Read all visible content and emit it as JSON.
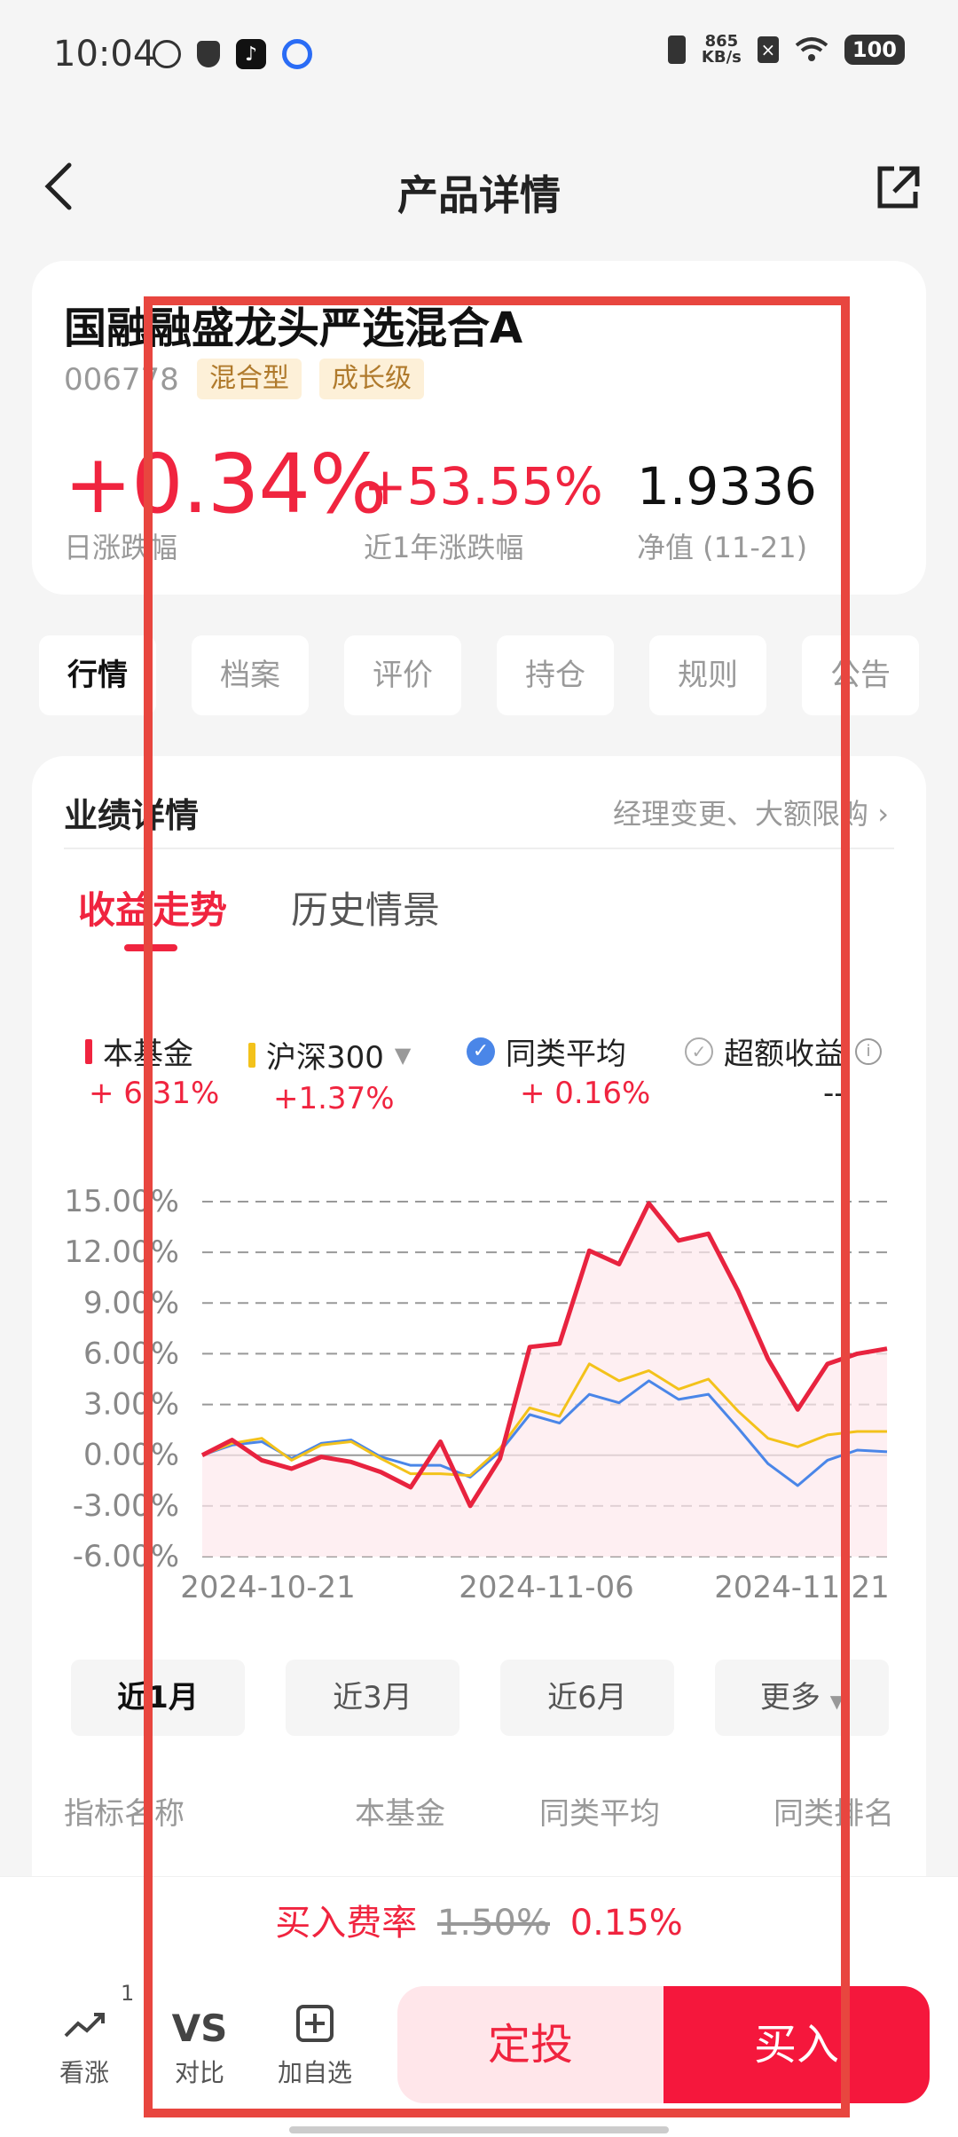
{
  "status": {
    "time": "10:04",
    "net_speed_top": "865",
    "net_speed_bottom": "KB/s",
    "battery": "100"
  },
  "header": {
    "title": "产品详情"
  },
  "fund": {
    "name": "国融融盛龙头严选混合A",
    "code": "006778",
    "tags": [
      "混合型",
      "成长级"
    ],
    "daily_change": "+0.34%",
    "daily_change_label": "日涨跌幅",
    "year_change": "+53.55%",
    "year_change_label": "近1年涨跌幅",
    "nav": "1.9336",
    "nav_label": "净值 (11-21)"
  },
  "tabs": [
    "行情",
    "档案",
    "评价",
    "持仓",
    "规则",
    "公告"
  ],
  "performance": {
    "title": "业绩详情",
    "link": "经理变更、大额限购",
    "subtabs": [
      "收益走势",
      "历史情景"
    ],
    "legend": [
      {
        "name": "本基金",
        "value": "+ 6.31%",
        "color": "#f0243f"
      },
      {
        "name": "沪深300",
        "value": "+1.37%",
        "color": "#f3c21b"
      },
      {
        "name": "同类平均",
        "value": "+ 0.16%",
        "color": "#4a86e8"
      },
      {
        "name": "超额收益",
        "value": "--",
        "color": "#999999"
      }
    ]
  },
  "chart_data": {
    "type": "line",
    "y_ticks": [
      "15.00%",
      "12.00%",
      "9.00%",
      "6.00%",
      "3.00%",
      "0.00%",
      "-3.00%",
      "-6.00%"
    ],
    "x_ticks": [
      "2024-10-21",
      "2024-11-06",
      "2024-11-21"
    ],
    "ylim": [
      -6,
      15
    ],
    "grid": true,
    "series": [
      {
        "name": "本基金",
        "color": "#e8233f",
        "values": [
          0,
          0.9,
          -0.3,
          -0.8,
          -0.1,
          -0.4,
          -1.0,
          -1.9,
          0.8,
          -3.0,
          -0.2,
          6.4,
          6.6,
          12.1,
          11.3,
          14.9,
          12.7,
          13.1,
          9.7,
          5.7,
          2.7,
          5.4,
          6.0,
          6.3
        ]
      },
      {
        "name": "沪深300",
        "color": "#f3c21b",
        "values": [
          0,
          0.7,
          1.0,
          -0.3,
          0.6,
          0.8,
          -0.2,
          -1.1,
          -1.1,
          -1.2,
          0.4,
          2.8,
          2.3,
          5.4,
          4.4,
          5.0,
          3.9,
          4.5,
          2.6,
          1.0,
          0.5,
          1.2,
          1.4,
          1.4
        ]
      },
      {
        "name": "同类平均",
        "color": "#4a86e8",
        "values": [
          0,
          0.6,
          0.8,
          -0.2,
          0.7,
          0.9,
          -0.1,
          -0.6,
          -0.6,
          -1.3,
          0.2,
          2.4,
          1.9,
          3.6,
          3.1,
          4.4,
          3.3,
          3.6,
          1.6,
          -0.5,
          -1.8,
          -0.3,
          0.3,
          0.2
        ]
      }
    ]
  },
  "periods": [
    "近1月",
    "近3月",
    "近6月",
    "更多"
  ],
  "indicators": {
    "headers": [
      "指标名称",
      "本基金",
      "同类平均",
      "同类排名"
    ]
  },
  "fee": {
    "label": "买入费率",
    "old": "1.50%",
    "new": "0.15%"
  },
  "bottom_nav": {
    "items": [
      {
        "label": "看涨",
        "badge": "1"
      },
      {
        "label": "对比",
        "icon_text": "VS"
      },
      {
        "label": "加自选"
      }
    ],
    "dingtou": "定投",
    "buy": "买入"
  }
}
